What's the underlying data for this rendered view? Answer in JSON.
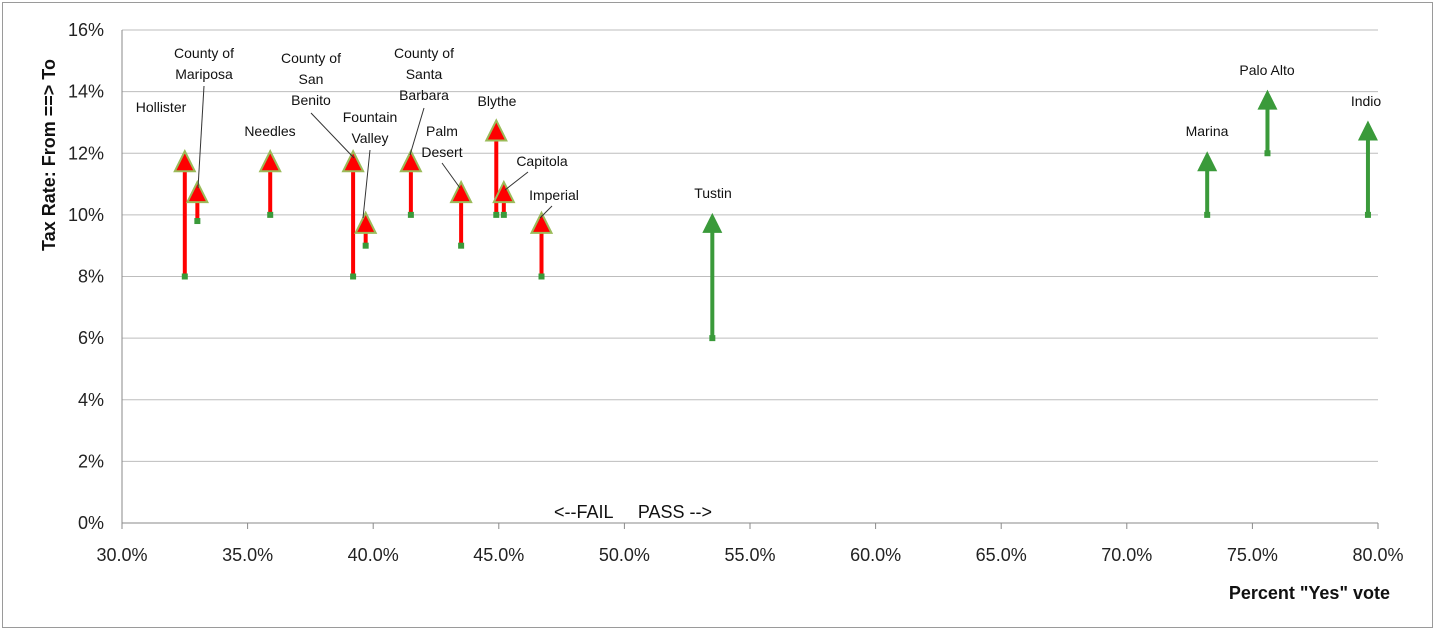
{
  "chart_data": {
    "type": "scatter",
    "title": "",
    "xlabel": "Percent \"Yes\" vote",
    "ylabel": "Tax Rate: From ==> To",
    "xlim": [
      30.0,
      80.0
    ],
    "ylim": [
      0,
      16
    ],
    "x_ticks": [
      "30.0%",
      "35.0%",
      "40.0%",
      "45.0%",
      "50.0%",
      "55.0%",
      "60.0%",
      "65.0%",
      "70.0%",
      "75.0%",
      "80.0%"
    ],
    "y_ticks": [
      "0%",
      "2%",
      "4%",
      "6%",
      "8%",
      "10%",
      "12%",
      "14%",
      "16%"
    ],
    "grid": "horizontal",
    "annotation": "<--FAIL     PASS -->",
    "colors": {
      "fail": "#ff0000",
      "pass": "#3a9a3a",
      "fail_head_outline": "#9bbb59",
      "grid": "#bdbdbd"
    },
    "points": [
      {
        "name": "Hollister",
        "x": 32.5,
        "from": 8,
        "to": 12,
        "result": "fail"
      },
      {
        "name": "County of Mariposa",
        "x": 33.0,
        "from": 9.8,
        "to": 11,
        "result": "fail"
      },
      {
        "name": "Needles",
        "x": 35.9,
        "from": 10,
        "to": 12,
        "result": "fail"
      },
      {
        "name": "County of San Benito",
        "x": 39.2,
        "from": 8,
        "to": 12,
        "result": "fail"
      },
      {
        "name": "Fountain Valley",
        "x": 39.7,
        "from": 9,
        "to": 10,
        "result": "fail"
      },
      {
        "name": "County of Santa Barbara",
        "x": 41.5,
        "from": 10,
        "to": 12,
        "result": "fail"
      },
      {
        "name": "Palm Desert",
        "x": 43.5,
        "from": 9,
        "to": 11,
        "result": "fail"
      },
      {
        "name": "Blythe",
        "x": 44.9,
        "from": 10,
        "to": 13,
        "result": "fail"
      },
      {
        "name": "Capitola",
        "x": 45.2,
        "from": 10,
        "to": 11,
        "result": "fail"
      },
      {
        "name": "Imperial",
        "x": 46.7,
        "from": 8,
        "to": 10,
        "result": "fail"
      },
      {
        "name": "Tustin",
        "x": 53.5,
        "from": 6,
        "to": 10,
        "result": "pass"
      },
      {
        "name": "Marina",
        "x": 73.2,
        "from": 10,
        "to": 12,
        "result": "pass"
      },
      {
        "name": "Palo Alto",
        "x": 75.6,
        "from": 12,
        "to": 14,
        "result": "pass"
      },
      {
        "name": "Indio",
        "x": 79.6,
        "from": 10,
        "to": 13,
        "result": "pass"
      }
    ]
  }
}
